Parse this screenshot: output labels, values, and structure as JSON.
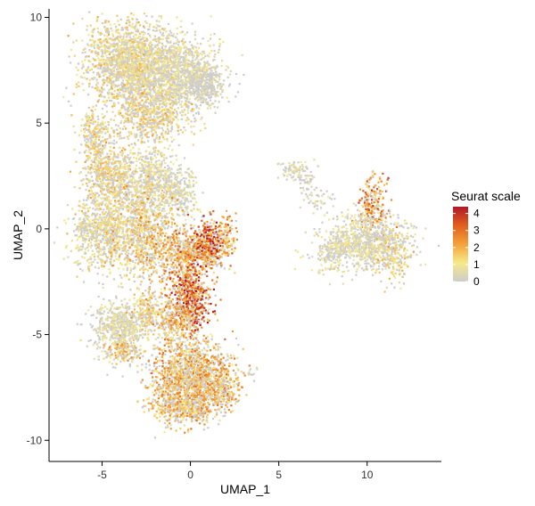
{
  "chart_data": {
    "type": "scatter",
    "title": "",
    "xlabel": "UMAP_1",
    "ylabel": "UMAP_2",
    "xlim": [
      -8.0,
      14.2
    ],
    "ylim": [
      -11.0,
      10.4
    ],
    "x_ticks": [
      -5,
      0,
      5,
      10
    ],
    "y_ticks": [
      -10,
      -5,
      0,
      5,
      10
    ],
    "grid": false,
    "legend": {
      "title": "Seurat scale",
      "placement": "right",
      "min": 0,
      "max": 4.4,
      "ticks": [
        0,
        1,
        2,
        3,
        4
      ],
      "colors": [
        "#cccccc",
        "#f6e98a",
        "#f4a23a",
        "#e05f1c",
        "#b2182b"
      ]
    },
    "clusters": [
      {
        "cx": -3.6,
        "cy": 7.9,
        "sx": 1.25,
        "sy": 0.95,
        "n": 1500,
        "level": 1.3
      },
      {
        "cx": -1.0,
        "cy": 7.4,
        "sx": 1.3,
        "sy": 0.85,
        "n": 1200,
        "level": 0.9
      },
      {
        "cx": 0.7,
        "cy": 6.8,
        "sx": 0.6,
        "sy": 0.5,
        "n": 350,
        "level": 0.4
      },
      {
        "cx": -2.3,
        "cy": 5.3,
        "sx": 1.1,
        "sy": 0.7,
        "n": 650,
        "level": 1.4
      },
      {
        "cx": -5.4,
        "cy": 4.4,
        "sx": 0.45,
        "sy": 0.6,
        "n": 220,
        "level": 1.4
      },
      {
        "cx": -4.6,
        "cy": 2.6,
        "sx": 0.75,
        "sy": 0.75,
        "n": 500,
        "level": 1.5
      },
      {
        "cx": -2.3,
        "cy": 2.2,
        "sx": 0.9,
        "sy": 0.8,
        "n": 650,
        "level": 0.9
      },
      {
        "cx": -0.6,
        "cy": 1.7,
        "sx": 0.5,
        "sy": 0.55,
        "n": 220,
        "level": 0.7
      },
      {
        "cx": -4.8,
        "cy": 0.0,
        "sx": 0.9,
        "sy": 0.95,
        "n": 800,
        "level": 1.2
      },
      {
        "cx": -2.5,
        "cy": -0.4,
        "sx": 0.9,
        "sy": 1.0,
        "n": 750,
        "level": 1.8
      },
      {
        "cx": -6.1,
        "cy": 0.1,
        "sx": 0.22,
        "sy": 0.22,
        "n": 50,
        "level": 1.0
      },
      {
        "cx": -0.4,
        "cy": -1.4,
        "sx": 0.65,
        "sy": 0.8,
        "n": 400,
        "level": 2.4
      },
      {
        "cx": 0.9,
        "cy": -1.2,
        "sx": 0.7,
        "sy": 0.35,
        "n": 280,
        "level": 2.6
      },
      {
        "cx": 1.0,
        "cy": -0.4,
        "sx": 0.45,
        "sy": 0.4,
        "n": 220,
        "level": 3.5
      },
      {
        "cx": 2.1,
        "cy": -0.3,
        "sx": 0.3,
        "sy": 0.5,
        "n": 90,
        "level": 2.2
      },
      {
        "cx": 0.0,
        "cy": -3.4,
        "sx": 0.55,
        "sy": 0.75,
        "n": 600,
        "level": 3.3
      },
      {
        "cx": -4.0,
        "cy": -4.6,
        "sx": 0.8,
        "sy": 0.55,
        "n": 520,
        "level": 0.8
      },
      {
        "cx": -3.8,
        "cy": -5.8,
        "sx": 0.55,
        "sy": 0.35,
        "n": 160,
        "level": 1.8
      },
      {
        "cx": -2.5,
        "cy": -3.8,
        "sx": 0.45,
        "sy": 0.5,
        "n": 180,
        "level": 1.6
      },
      {
        "cx": -1.1,
        "cy": -4.4,
        "sx": 0.5,
        "sy": 0.5,
        "n": 220,
        "level": 2.0
      },
      {
        "cx": 0.0,
        "cy": -6.9,
        "sx": 1.15,
        "sy": 0.85,
        "n": 1300,
        "level": 2.1
      },
      {
        "cx": -0.3,
        "cy": -8.4,
        "sx": 0.9,
        "sy": 0.4,
        "n": 450,
        "level": 2.0
      },
      {
        "cx": 1.8,
        "cy": -7.6,
        "sx": 0.55,
        "sy": 0.55,
        "n": 220,
        "level": 2.0
      },
      {
        "cx": 3.4,
        "cy": -6.8,
        "sx": 0.18,
        "sy": 0.12,
        "n": 12,
        "level": 0.4
      },
      {
        "cx": 5.9,
        "cy": 2.8,
        "sx": 0.45,
        "sy": 0.22,
        "n": 70,
        "level": 0.7
      },
      {
        "cx": 6.6,
        "cy": 2.3,
        "sx": 0.25,
        "sy": 0.35,
        "n": 40,
        "level": 0.5
      },
      {
        "cx": 7.1,
        "cy": 1.3,
        "sx": 0.45,
        "sy": 0.25,
        "n": 40,
        "level": 0.4
      },
      {
        "cx": 10.3,
        "cy": 1.1,
        "sx": 0.45,
        "sy": 0.7,
        "n": 220,
        "level": 2.6
      },
      {
        "cx": 9.9,
        "cy": -0.6,
        "sx": 1.25,
        "sy": 0.65,
        "n": 800,
        "level": 0.8
      },
      {
        "cx": 11.3,
        "cy": -1.3,
        "sx": 0.6,
        "sy": 0.55,
        "n": 200,
        "level": 1.4
      },
      {
        "cx": 7.9,
        "cy": -1.2,
        "sx": 0.4,
        "sy": 0.5,
        "n": 140,
        "level": 0.8
      }
    ]
  }
}
